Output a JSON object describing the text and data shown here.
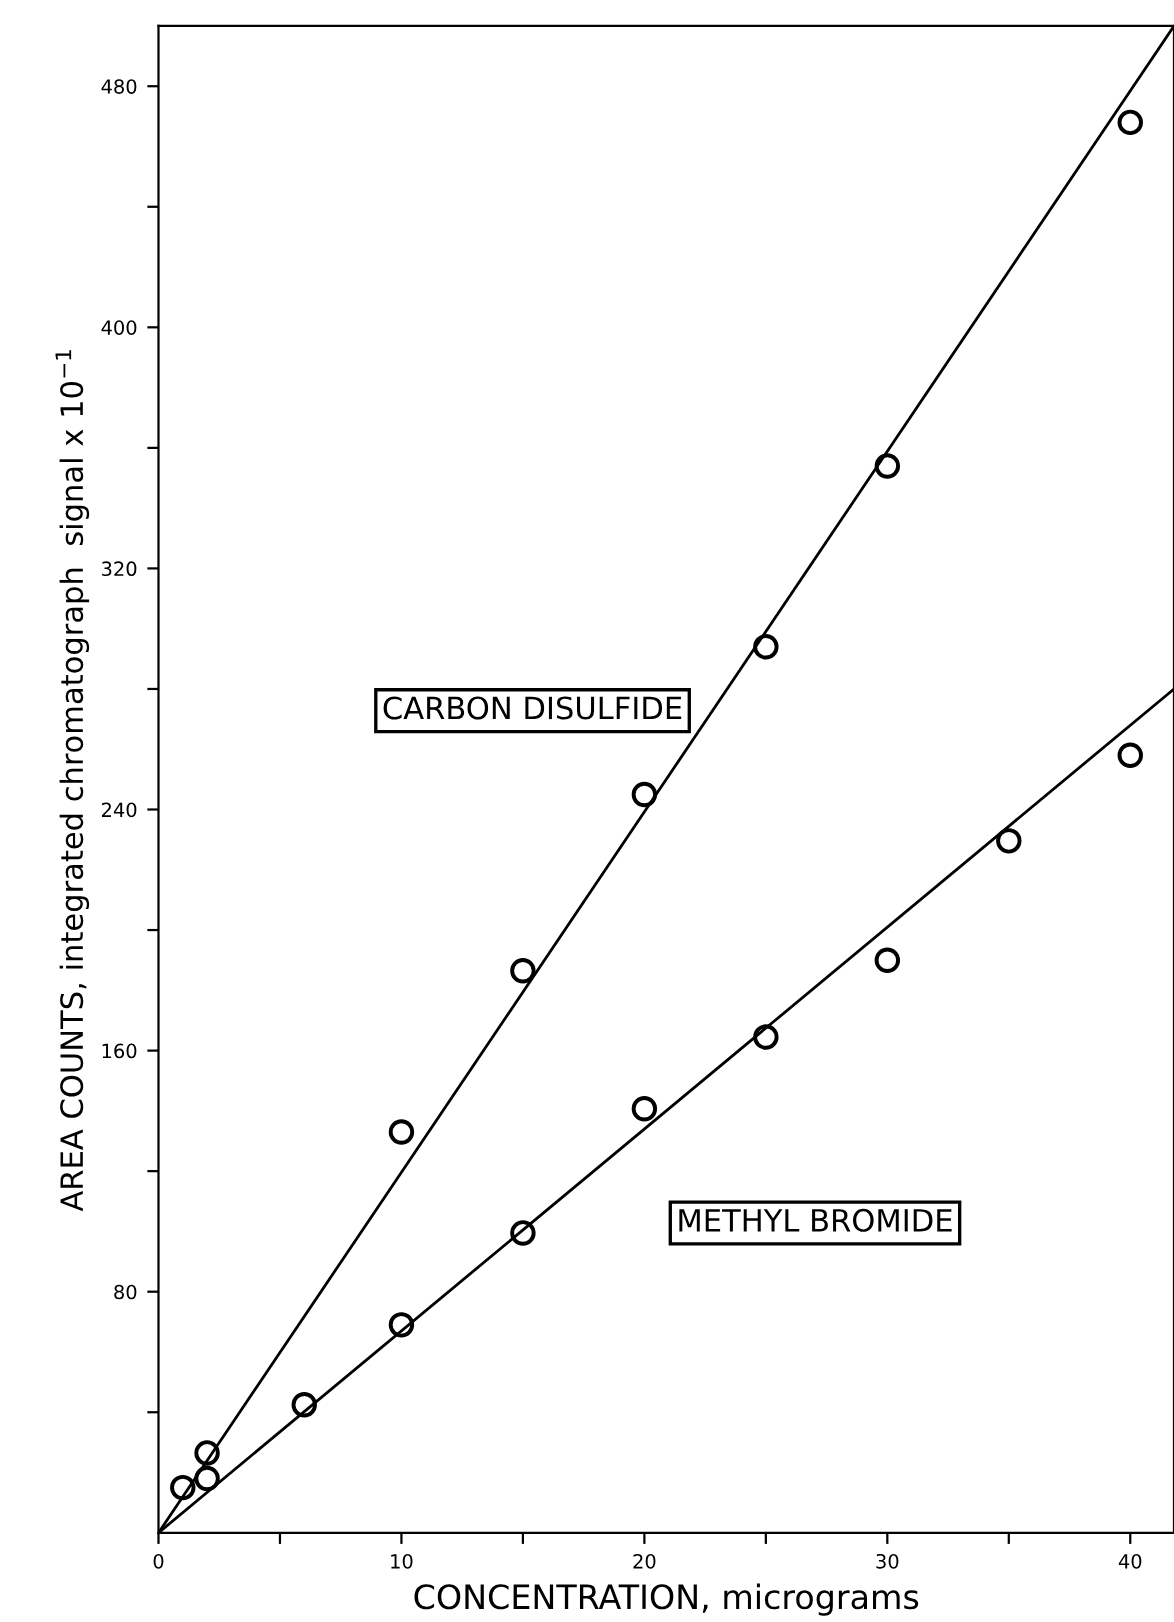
{
  "chart_data": {
    "type": "scatter",
    "xlabel": "CONCENTRATION, micrograms",
    "ylabel": "AREA COUNTS, integrated chromatograph  signal x 10$^{−1}$",
    "xlim": [
      0,
      41.8
    ],
    "ylim": [
      0,
      500
    ],
    "xticks": [
      0,
      {
        "value": 5,
        "label": null
      },
      10,
      {
        "value": 15,
        "label": null
      },
      20,
      {
        "value": 25,
        "label": null
      },
      30,
      {
        "value": 35,
        "label": null
      },
      40
    ],
    "yticks": [
      {
        "value": 40,
        "label": null
      },
      80,
      {
        "value": 120,
        "label": null
      },
      160,
      {
        "value": 200,
        "label": null
      },
      240,
      {
        "value": 280,
        "label": null
      },
      320,
      {
        "value": 360,
        "label": null
      },
      400,
      {
        "value": 440,
        "label": null
      },
      480
    ],
    "grid": false,
    "legend": false,
    "marker": "circle",
    "series": [
      {
        "name": "CARBON DISULFIDE",
        "color": "#000000",
        "x": [
          1,
          2,
          10,
          15,
          20,
          25,
          30,
          40
        ],
        "values": [
          15,
          26.5,
          133,
          186.5,
          245,
          294,
          354,
          468
        ]
      },
      {
        "name": "METHYL BROMIDE",
        "color": "#000000",
        "x": [
          2,
          6,
          10,
          15,
          20,
          25,
          30,
          35,
          40
        ],
        "values": [
          18,
          42.5,
          69,
          99.5,
          140.7,
          164.5,
          190,
          229.6,
          258
        ]
      },
      {
        "type": "line",
        "color": "#000000",
        "marker": "none",
        "line_style": "solid",
        "x": [
          0,
          41.8
        ],
        "values": [
          0,
          500
        ]
      },
      {
        "type": "line",
        "color": "#000000",
        "marker": "none",
        "line_style": "solid",
        "x": [
          0,
          41.8
        ],
        "values": [
          0,
          280
        ]
      }
    ]
  }
}
